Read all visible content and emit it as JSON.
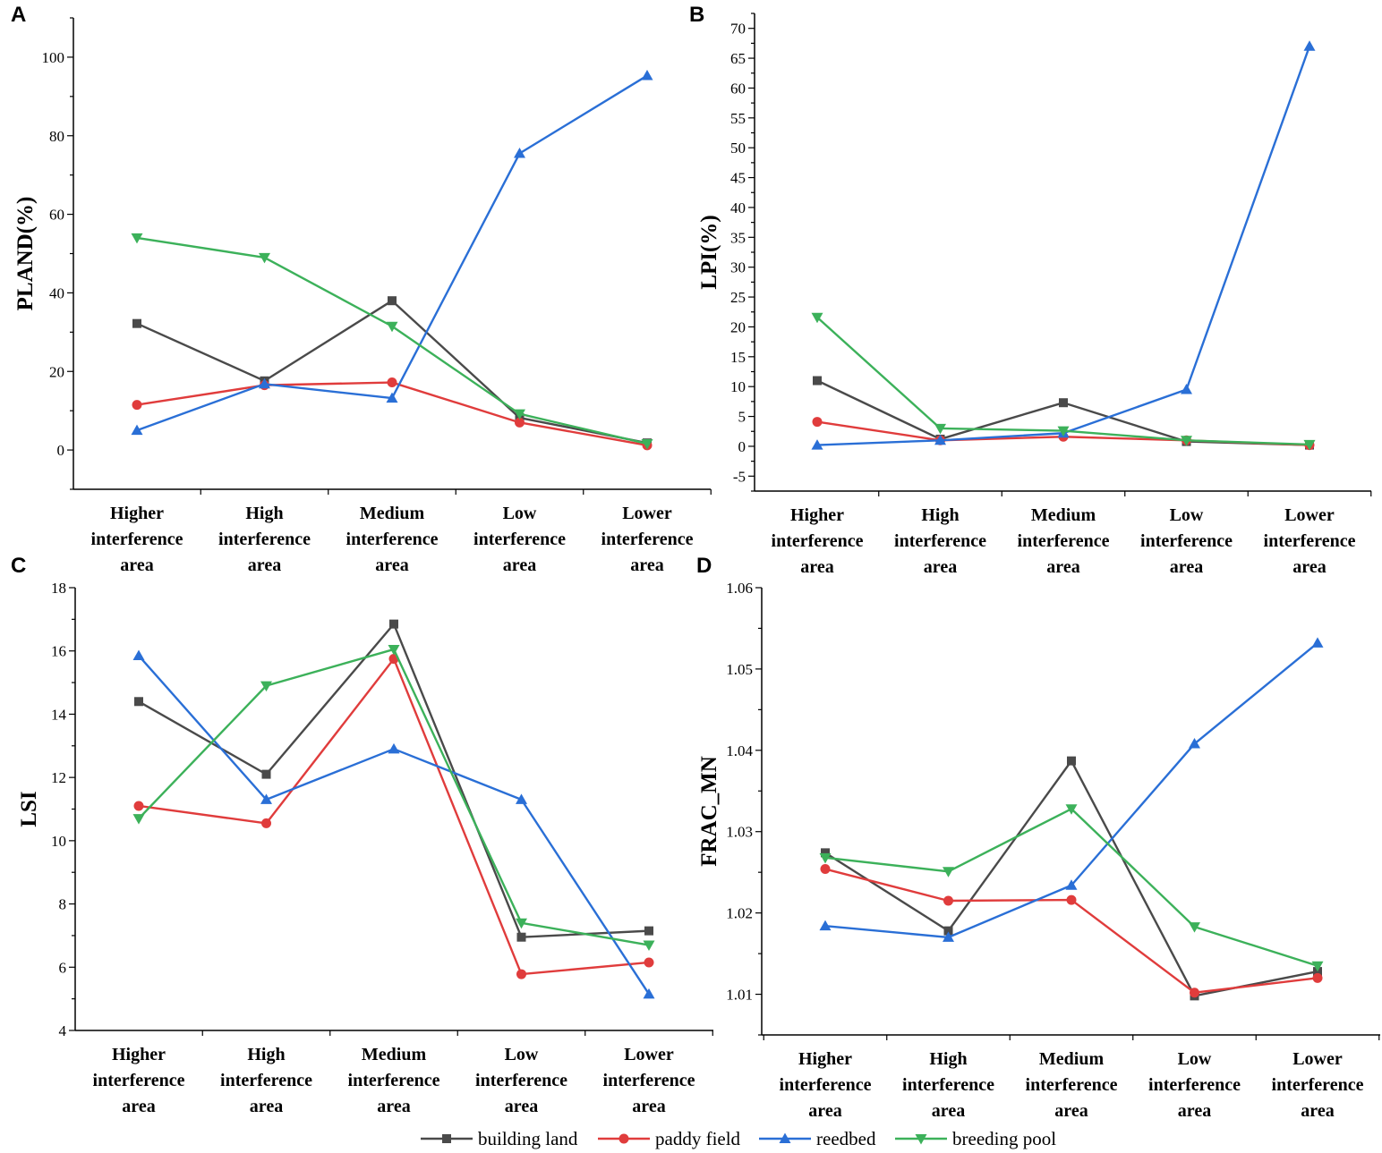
{
  "figure": {
    "categories": [
      [
        "Higher",
        "interference",
        "area"
      ],
      [
        "High",
        "interference",
        "area"
      ],
      [
        "Medium",
        "interference",
        "area"
      ],
      [
        "Low",
        "interference",
        "area"
      ],
      [
        "Lower",
        "interference",
        "area"
      ]
    ],
    "legend": [
      "building land",
      "paddy field",
      "reedbed",
      "breeding pool"
    ]
  },
  "series_styles": [
    {
      "name": "building land",
      "color": "#4a4a4a",
      "marker": "square"
    },
    {
      "name": "paddy field",
      "color": "#e03c3c",
      "marker": "circle"
    },
    {
      "name": "reedbed",
      "color": "#2a6fd6",
      "marker": "triangle-up"
    },
    {
      "name": "breeding pool",
      "color": "#3cb15a",
      "marker": "triangle-down"
    }
  ],
  "chart_data": [
    {
      "panel": "A",
      "type": "line",
      "categories": [
        "Higher interference area",
        "High interference area",
        "Medium interference area",
        "Low interference area",
        "Lower interference area"
      ],
      "ylabel": "PLAND(%)",
      "xlabel": "",
      "ylim": [
        -10,
        110
      ],
      "yticks": [
        0,
        20,
        40,
        60,
        80,
        100
      ],
      "yticklabels": [
        "0",
        "20",
        "40",
        "60",
        "80",
        "100"
      ],
      "series": [
        {
          "name": "building land",
          "values": [
            32.2,
            17.6,
            38.0,
            8.2,
            1.8
          ]
        },
        {
          "name": "paddy field",
          "values": [
            11.5,
            16.5,
            17.2,
            7.0,
            1.2
          ]
        },
        {
          "name": "reedbed",
          "values": [
            5.0,
            16.8,
            13.2,
            75.5,
            95.3
          ]
        },
        {
          "name": "breeding pool",
          "values": [
            54.0,
            49.0,
            31.5,
            9.2,
            1.6
          ]
        }
      ]
    },
    {
      "panel": "B",
      "type": "line",
      "categories": [
        "Higher interference area",
        "High interference area",
        "Medium interference area",
        "Low interference area",
        "Lower interference area"
      ],
      "ylabel": "LPI(%)",
      "xlabel": "",
      "ylim": [
        -7.5,
        72.5
      ],
      "yticks": [
        -5,
        0,
        5,
        10,
        15,
        20,
        25,
        30,
        35,
        40,
        45,
        50,
        55,
        60,
        65,
        70
      ],
      "yticklabels": [
        "-5",
        "0",
        "5",
        "10",
        "15",
        "20",
        "25",
        "30",
        "35",
        "40",
        "45",
        "50",
        "55",
        "60",
        "65",
        "70"
      ],
      "series": [
        {
          "name": "building land",
          "values": [
            11.0,
            1.2,
            7.3,
            0.8,
            0.2
          ]
        },
        {
          "name": "paddy field",
          "values": [
            4.1,
            1.0,
            1.6,
            1.0,
            0.2
          ]
        },
        {
          "name": "reedbed",
          "values": [
            0.2,
            1.0,
            2.2,
            9.5,
            67.0
          ]
        },
        {
          "name": "breeding pool",
          "values": [
            21.6,
            3.0,
            2.6,
            1.0,
            0.3
          ]
        }
      ]
    },
    {
      "panel": "C",
      "type": "line",
      "categories": [
        "Higher interference area",
        "High interference area",
        "Medium interference area",
        "Low interference area",
        "Lower interference area"
      ],
      "ylabel": "LSI",
      "xlabel": "",
      "ylim": [
        4,
        18
      ],
      "yticks": [
        4,
        6,
        8,
        10,
        12,
        14,
        16,
        18
      ],
      "yticklabels": [
        "4",
        "6",
        "8",
        "10",
        "12",
        "14",
        "16",
        "18"
      ],
      "series": [
        {
          "name": "building land",
          "values": [
            14.4,
            12.1,
            16.85,
            6.95,
            7.15
          ]
        },
        {
          "name": "paddy field",
          "values": [
            11.1,
            10.55,
            15.75,
            5.78,
            6.15
          ]
        },
        {
          "name": "reedbed",
          "values": [
            15.85,
            11.3,
            12.9,
            11.3,
            5.15
          ]
        },
        {
          "name": "breeding pool",
          "values": [
            10.7,
            14.9,
            16.05,
            7.4,
            6.7
          ]
        }
      ]
    },
    {
      "panel": "D",
      "type": "line",
      "categories": [
        "Higher interference area",
        "High interference area",
        "Medium interference area",
        "Low interference area",
        "Lower interference area"
      ],
      "ylabel": "FRAC_MN",
      "xlabel": "",
      "ylim": [
        1.005,
        1.06
      ],
      "yticks": [
        1.01,
        1.02,
        1.03,
        1.04,
        1.05,
        1.06
      ],
      "yticklabels": [
        "1.01",
        "1.02",
        "1.03",
        "1.04",
        "1.05",
        "1.06"
      ],
      "series": [
        {
          "name": "building land",
          "values": [
            1.0274,
            1.0178,
            1.0387,
            1.0098,
            1.0128
          ]
        },
        {
          "name": "paddy field",
          "values": [
            1.0254,
            1.0215,
            1.0216,
            1.0102,
            1.012
          ]
        },
        {
          "name": "reedbed",
          "values": [
            1.0184,
            1.017,
            1.0234,
            1.0408,
            1.0532
          ]
        },
        {
          "name": "breeding pool",
          "values": [
            1.0268,
            1.0251,
            1.0328,
            1.0183,
            1.0135
          ]
        }
      ]
    }
  ]
}
